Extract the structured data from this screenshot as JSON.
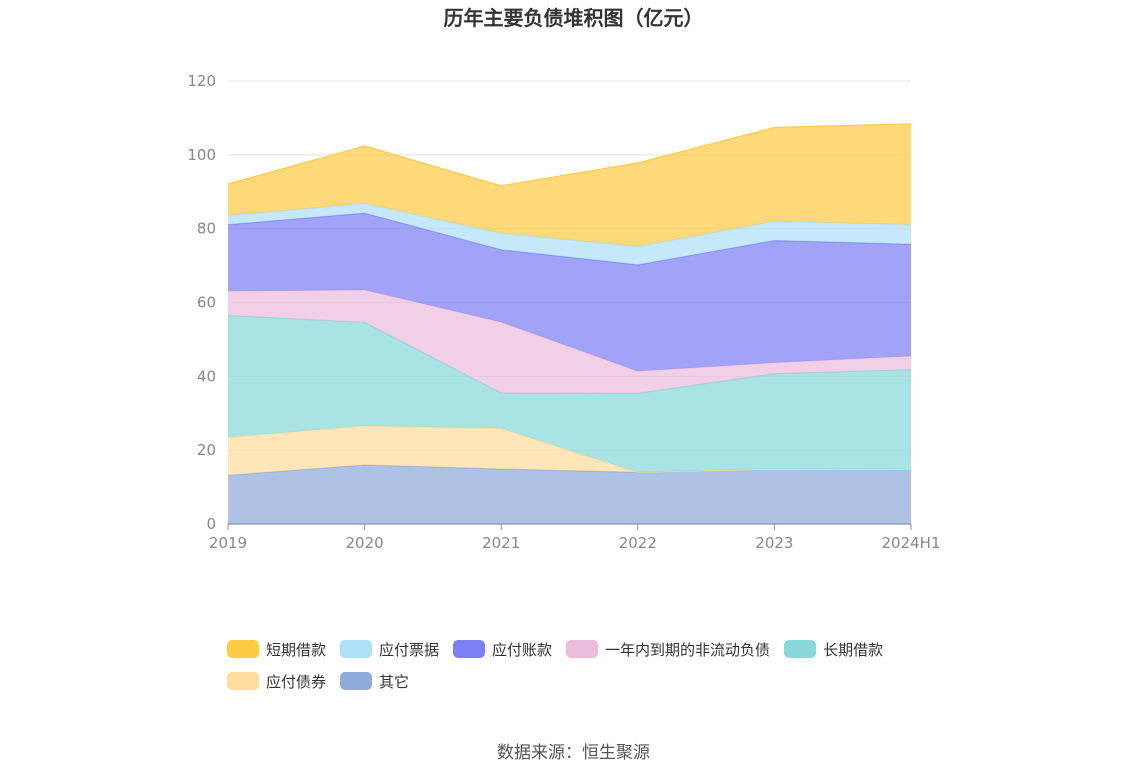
{
  "title": "历年主要负债堆积图（亿元）",
  "source": "数据来源：恒生聚源",
  "chart_data": {
    "type": "area",
    "stacked": true,
    "title": "历年主要负债堆积图（亿元）",
    "categories": [
      "2019",
      "2020",
      "2021",
      "2022",
      "2023",
      "2024H1"
    ],
    "ylim": [
      0,
      120
    ],
    "yticks": [
      "0",
      "20",
      "40",
      "60",
      "80",
      "100",
      "120"
    ],
    "grid": true,
    "legend_position": "bottom",
    "series": [
      {
        "name": "其它",
        "color": "#8fabdc",
        "values": [
          13.2,
          16.0,
          14.9,
          14.0,
          14.9,
          14.8
        ]
      },
      {
        "name": "应付债券",
        "color": "#fedd9d",
        "values": [
          10.3,
          10.6,
          11.0,
          0,
          0,
          0
        ]
      },
      {
        "name": "长期借款",
        "color": "#88d8d9",
        "values": [
          33.0,
          28.0,
          9.6,
          21.4,
          25.8,
          27.0
        ]
      },
      {
        "name": "一年内到期的非流动负债",
        "color": "#ebbcdc",
        "values": [
          6.6,
          8.8,
          19.2,
          6.0,
          3.0,
          3.7
        ]
      },
      {
        "name": "应付账款",
        "color": "#7d80f5",
        "values": [
          18.0,
          20.8,
          19.6,
          28.8,
          33.1,
          30.3
        ]
      },
      {
        "name": "应付票据",
        "color": "#aee0f8",
        "values": [
          2.5,
          2.6,
          4.5,
          5.0,
          5.2,
          5.3
        ]
      },
      {
        "name": "短期借款",
        "color": "#fecb45",
        "values": [
          8.5,
          15.6,
          12.8,
          22.6,
          25.4,
          27.3
        ]
      }
    ]
  }
}
